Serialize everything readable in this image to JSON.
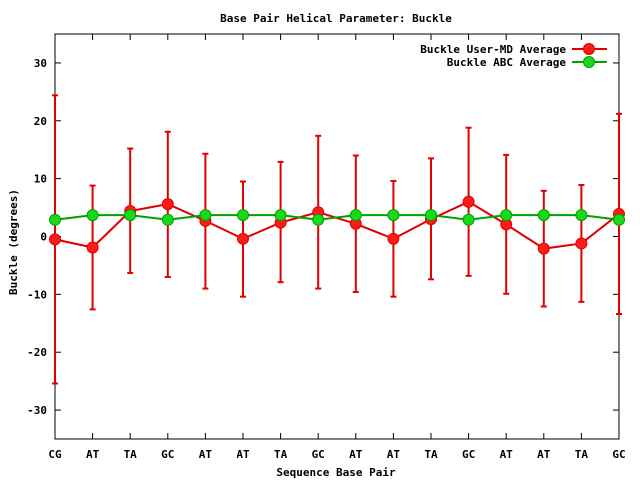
{
  "chart_data": {
    "type": "line",
    "title": "Base Pair Helical Parameter: Buckle",
    "xlabel": "Sequence Base Pair",
    "ylabel": "Buckle (degrees)",
    "categories": [
      "CG",
      "AT",
      "TA",
      "GC",
      "AT",
      "AT",
      "TA",
      "GC",
      "AT",
      "AT",
      "TA",
      "GC",
      "AT",
      "AT",
      "TA",
      "GC"
    ],
    "ylim": [
      -35,
      35
    ],
    "yticks": [
      -30,
      -20,
      -10,
      0,
      10,
      20,
      30
    ],
    "ytick_labels": [
      "-30",
      "-20",
      "-10",
      "0",
      "10",
      "20",
      "30"
    ],
    "grid": false,
    "legend_position": "top-right",
    "series": [
      {
        "name": "Buckle User-MD Average",
        "color": "#e00000",
        "marker_color": "#ff1a1a",
        "values": [
          -0.5,
          -1.9,
          4.4,
          5.6,
          2.7,
          -0.4,
          2.4,
          4.2,
          2.2,
          -0.4,
          3.0,
          6.0,
          2.1,
          -2.1,
          -1.2,
          3.9
        ],
        "error_low": [
          -25.4,
          -12.6,
          -6.3,
          -7.0,
          -9.0,
          -10.4,
          -7.9,
          -9.0,
          -9.6,
          -10.4,
          -7.4,
          -6.8,
          -9.9,
          -12.1,
          -11.3,
          -13.4
        ],
        "error_high": [
          24.4,
          8.8,
          15.2,
          18.1,
          14.3,
          9.5,
          12.9,
          17.4,
          14.0,
          9.6,
          13.5,
          18.8,
          14.1,
          7.9,
          8.9,
          21.2
        ]
      },
      {
        "name": "Buckle ABC Average",
        "color": "#00a000",
        "marker_color": "#1ad81a",
        "values": [
          2.9,
          3.7,
          3.7,
          2.9,
          3.7,
          3.7,
          3.7,
          2.9,
          3.7,
          3.7,
          3.7,
          2.9,
          3.7,
          3.7,
          3.7,
          2.9
        ]
      }
    ]
  }
}
